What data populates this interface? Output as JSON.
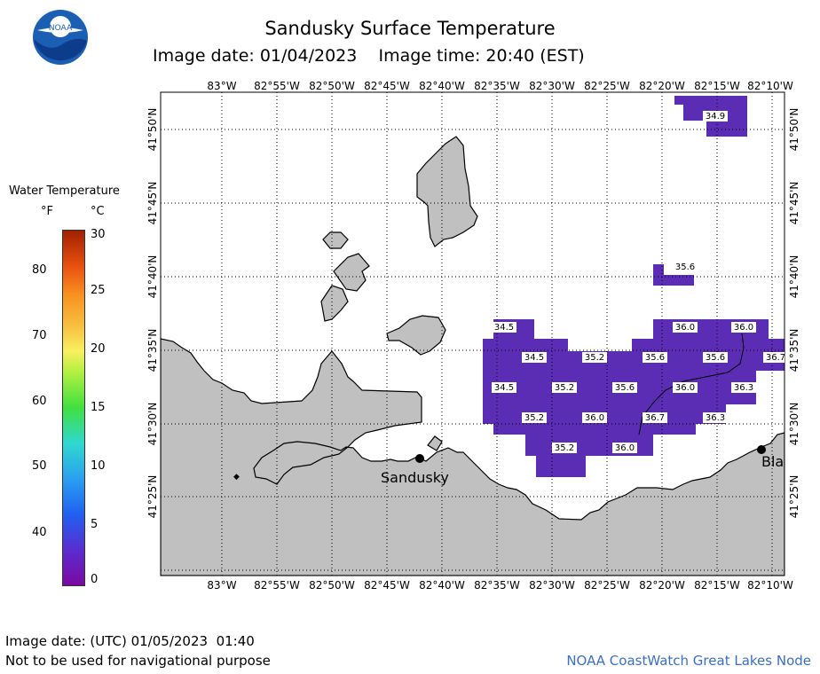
{
  "header": {
    "title": "Sandusky Surface Temperature",
    "image_date_label": "Image date: 01/04/2023",
    "image_time_label": "Image time: 20:40 (EST)",
    "logo_text": "NOAA"
  },
  "legend": {
    "title": "Water Temperature",
    "unit_f": "°F",
    "unit_c": "°C",
    "f_ticks": [
      "80",
      "70",
      "60",
      "50",
      "40"
    ],
    "c_ticks": [
      "30",
      "25",
      "20",
      "15",
      "10",
      "5",
      "0"
    ]
  },
  "map": {
    "lon_labels": [
      "83°W",
      "82°55'W",
      "82°50'W",
      "82°45'W",
      "82°40'W",
      "82°35'W",
      "82°30'W",
      "82°25'W",
      "82°20'W",
      "82°15'W",
      "82°10'W"
    ],
    "lat_labels": [
      "41°50'N",
      "41°45'N",
      "41°40'N",
      "41°35'N",
      "41°30'N",
      "41°25'N"
    ],
    "cities": [
      "Sandusky",
      "Bla"
    ],
    "temperature_labels": [
      "34.9",
      "35.6",
      "34.5",
      "36.0",
      "36.0",
      "34.5",
      "35.2",
      "35.6",
      "35.6",
      "36.7",
      "34.5",
      "35.2",
      "35.6",
      "36.0",
      "36.3",
      "35.2",
      "36.0",
      "36.7",
      "36.3",
      "35.2",
      "36.0"
    ]
  },
  "footer": {
    "utc_date": "Image date: (UTC) 01/05/2023  01:40",
    "disclaimer": "Not to be used for navigational purpose",
    "credit": "NOAA CoastWatch Great Lakes Node"
  },
  "colors": {
    "land": "#c0c0c0",
    "water_temp": "#5a2db4",
    "credit": "#3a6fc4"
  }
}
